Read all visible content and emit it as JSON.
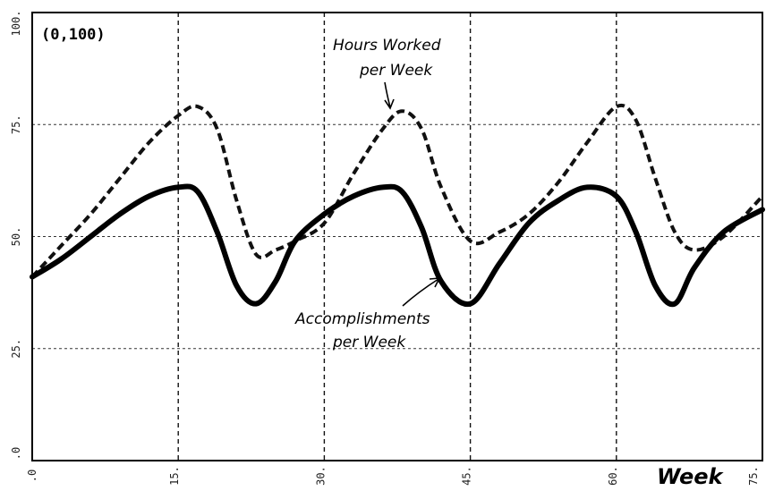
{
  "chart_data": {
    "type": "line",
    "title": "",
    "corner_label": "(0,100)",
    "xlabel": "Week",
    "ylabel": "",
    "xlim": [
      0,
      75
    ],
    "ylim": [
      0,
      100
    ],
    "x_ticks": [
      0,
      15,
      30,
      45,
      60,
      75
    ],
    "x_tick_labels": [
      ".0",
      "15.",
      "30.",
      "45.",
      "60.",
      "75."
    ],
    "y_ticks": [
      0,
      25,
      50,
      75,
      100
    ],
    "y_tick_labels": [
      ".0",
      "25.",
      "50.",
      "75.",
      "100."
    ],
    "grid": true,
    "series": [
      {
        "name": "Hours Worked per Week",
        "name_lines": [
          "Hours Worked",
          "per Week"
        ],
        "style": "dashed",
        "color": "#111111",
        "x": [
          0,
          3,
          6,
          9,
          12,
          15,
          17,
          19,
          21,
          23,
          25,
          27,
          30,
          33,
          36,
          38,
          40,
          42,
          45,
          48,
          51,
          54,
          57,
          60,
          62,
          64,
          66,
          68,
          71,
          75
        ],
        "y": [
          41,
          48,
          55,
          63,
          71,
          77,
          79,
          74,
          58,
          46,
          47,
          49,
          53,
          64,
          74,
          78,
          74,
          61,
          49,
          51,
          55,
          62,
          71,
          79,
          76,
          63,
          51,
          47,
          50,
          59
        ]
      },
      {
        "name": "Accomplishments per Week",
        "name_lines": [
          "Accomplishments",
          "per Week"
        ],
        "style": "solid",
        "color": "#000000",
        "x": [
          0,
          3,
          6,
          9,
          12,
          15,
          17,
          19,
          21,
          23,
          25,
          27,
          30,
          33,
          36,
          38,
          40,
          42,
          45,
          48,
          51,
          54,
          57,
          60,
          62,
          64,
          66,
          68,
          71,
          75
        ],
        "y": [
          41,
          45,
          50,
          55,
          59,
          61,
          60,
          51,
          39,
          35,
          40,
          49,
          55,
          59,
          61,
          60,
          52,
          40,
          35,
          44,
          53,
          58,
          61,
          59,
          51,
          39,
          35,
          43,
          51,
          56
        ]
      }
    ]
  }
}
